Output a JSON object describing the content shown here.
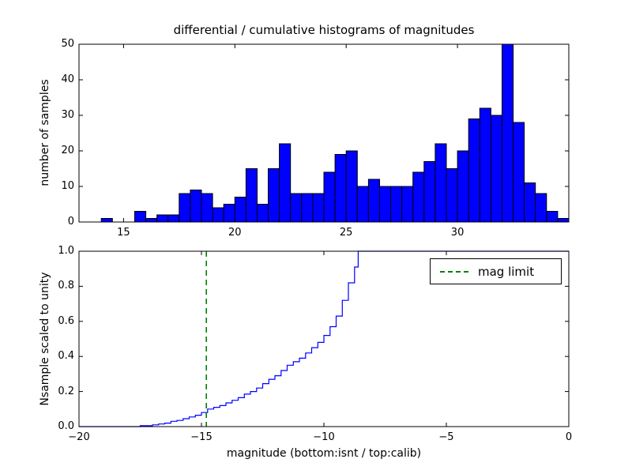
{
  "chart_data": [
    {
      "type": "bar",
      "title": "differential / cumulative histograms of magnitudes",
      "ylabel": "number of samples",
      "xlim": [
        13,
        35
      ],
      "ylim": [
        0,
        50
      ],
      "xticks": [
        15,
        20,
        25,
        30
      ],
      "xtick_labels": [
        "15",
        "20",
        "25",
        "30"
      ],
      "yticks": [
        0,
        10,
        20,
        30,
        40,
        50
      ],
      "ytick_labels": [
        "0",
        "10",
        "20",
        "30",
        "40",
        "50"
      ],
      "bin_start": 14.0,
      "bin_width": 0.5,
      "values": [
        1,
        0,
        0,
        3,
        1,
        2,
        2,
        8,
        9,
        8,
        4,
        5,
        7,
        15,
        5,
        15,
        22,
        8,
        8,
        8,
        14,
        19,
        20,
        10,
        12,
        10,
        10,
        10,
        14,
        17,
        22,
        15,
        20,
        29,
        32,
        30,
        50,
        28,
        11,
        8,
        3,
        1
      ],
      "bar_fill": "#0000ff",
      "bar_edge": "#000000",
      "grid": false
    },
    {
      "type": "line-step",
      "ylabel": "Nsample scaled to unity",
      "xlabel": "magnitude (bottom:isnt / top:calib)",
      "xlim": [
        -20,
        0
      ],
      "ylim": [
        0.0,
        1.0
      ],
      "xticks": [
        -20,
        -15,
        -10,
        -5,
        0
      ],
      "xtick_labels": [
        "−20",
        "−15",
        "−10",
        "−5",
        "0"
      ],
      "yticks": [
        0.0,
        0.2,
        0.4,
        0.6,
        0.8,
        1.0
      ],
      "ytick_labels": [
        "0.0",
        "0.2",
        "0.4",
        "0.6",
        "0.8",
        "1.0"
      ],
      "x": [
        -20,
        -18,
        -17.5,
        -17,
        -16.75,
        -16.5,
        -16.25,
        -16,
        -15.75,
        -15.5,
        -15.25,
        -15,
        -14.75,
        -14.5,
        -14.25,
        -14,
        -13.75,
        -13.5,
        -13.25,
        -13,
        -12.75,
        -12.5,
        -12.25,
        -12,
        -11.75,
        -11.5,
        -11.25,
        -11,
        -10.75,
        -10.5,
        -10.25,
        -10,
        -9.75,
        -9.5,
        -9.25,
        -9,
        -8.75,
        -8.6,
        0
      ],
      "y": [
        0,
        0,
        0.005,
        0.01,
        0.015,
        0.02,
        0.03,
        0.035,
        0.045,
        0.055,
        0.065,
        0.08,
        0.1,
        0.11,
        0.12,
        0.135,
        0.15,
        0.165,
        0.185,
        0.2,
        0.22,
        0.245,
        0.27,
        0.29,
        0.32,
        0.35,
        0.37,
        0.39,
        0.42,
        0.45,
        0.48,
        0.52,
        0.57,
        0.63,
        0.72,
        0.82,
        0.91,
        1.0,
        1.0
      ],
      "line_color": "#0000ff",
      "vline": {
        "x": -14.8,
        "color": "#008000",
        "style": "dashed",
        "label": "mag limit"
      },
      "legend": {
        "position": "upper right",
        "entries": [
          {
            "label": "mag limit",
            "color": "#008000",
            "style": "dashed"
          }
        ]
      },
      "grid": false
    }
  ]
}
